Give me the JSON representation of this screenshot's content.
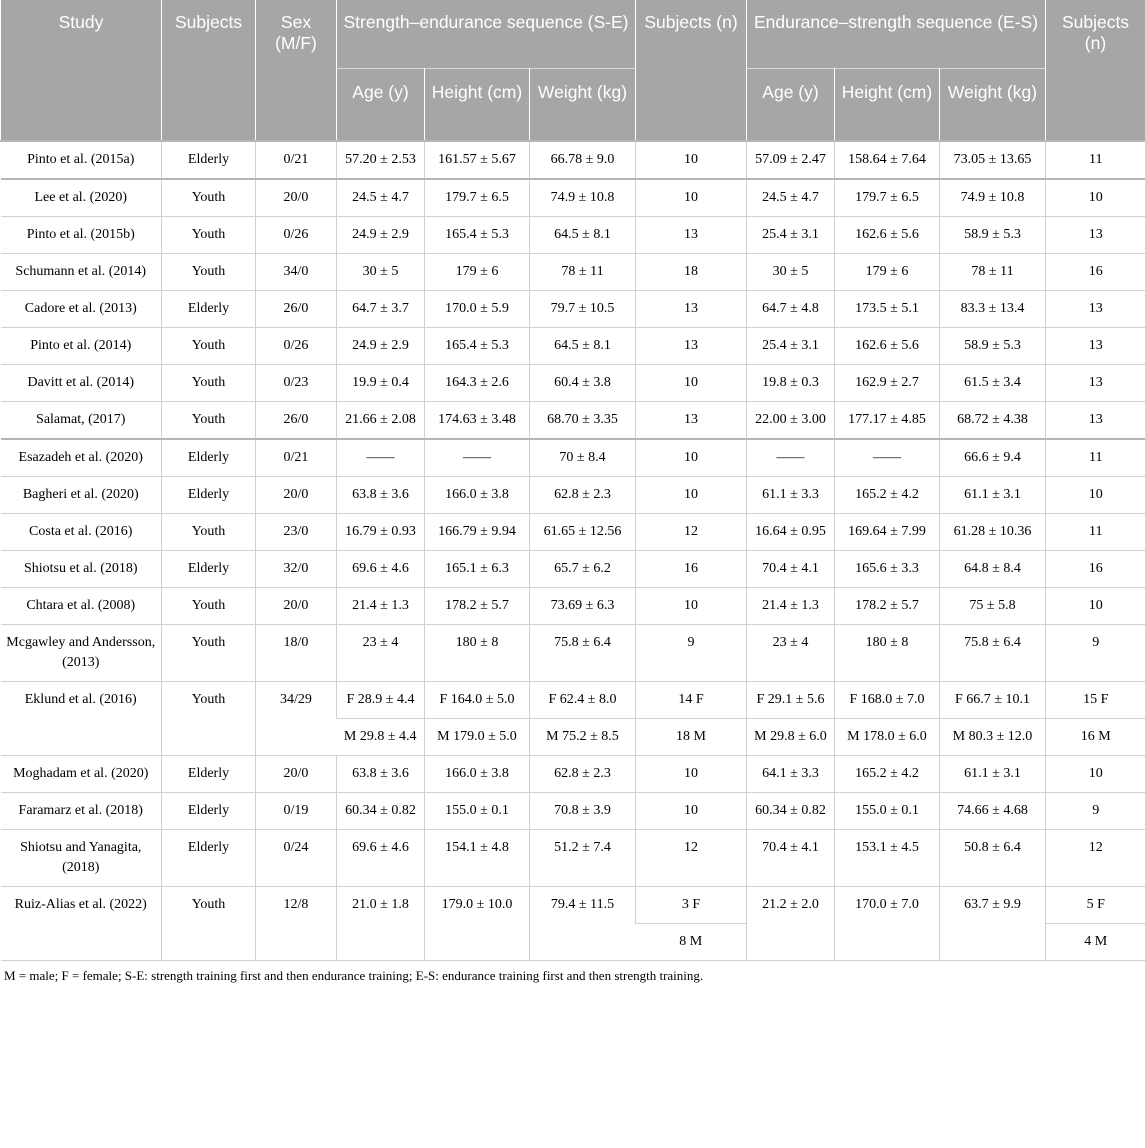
{
  "header": {
    "study": "Study",
    "subjects": "Subjects",
    "sex": "Sex (M/F)",
    "se_group": "Strength–endurance sequence (S-E)",
    "subjects_n1": "Subjects (n)",
    "es_group": "Endurance–strength sequence (E-S)",
    "subjects_n2": "Subjects (n)",
    "age": "Age (y)",
    "height": "Height (cm)",
    "weight": "Weight (kg)"
  },
  "rows": [
    [
      "Pinto et al. (2015a)",
      "Elderly",
      "0/21",
      "57.20 ± 2.53",
      "161.57 ± 5.67",
      "66.78 ± 9.0",
      "10",
      "57.09 ± 2.47",
      "158.64 ± 7.64",
      "73.05 ± 13.65",
      "11"
    ],
    [
      "Lee et al. (2020)",
      "Youth",
      "20/0",
      "24.5 ± 4.7",
      "179.7 ± 6.5",
      "74.9 ± 10.8",
      "10",
      "24.5 ± 4.7",
      "179.7 ± 6.5",
      "74.9 ± 10.8",
      "10"
    ],
    [
      "Pinto et al. (2015b)",
      "Youth",
      "0/26",
      "24.9 ± 2.9",
      "165.4 ± 5.3",
      "64.5 ± 8.1",
      "13",
      "25.4 ± 3.1",
      "162.6 ± 5.6",
      "58.9 ± 5.3",
      "13"
    ],
    [
      "Schumann et al. (2014)",
      "Youth",
      "34/0",
      "30 ± 5",
      "179 ± 6",
      "78 ± 11",
      "18",
      "30 ± 5",
      "179 ± 6",
      "78 ± 11",
      "16"
    ],
    [
      "Cadore et al. (2013)",
      "Elderly",
      "26/0",
      "64.7 ± 3.7",
      "170.0 ± 5.9",
      "79.7 ± 10.5",
      "13",
      "64.7 ± 4.8",
      "173.5 ± 5.1",
      "83.3 ± 13.4",
      "13"
    ],
    [
      "Pinto et al. (2014)",
      "Youth",
      "0/26",
      "24.9 ± 2.9",
      "165.4 ± 5.3",
      "64.5 ± 8.1",
      "13",
      "25.4 ± 3.1",
      "162.6 ± 5.6",
      "58.9 ± 5.3",
      "13"
    ],
    [
      "Davitt et al. (2014)",
      "Youth",
      "0/23",
      "19.9 ± 0.4",
      "164.3 ± 2.6",
      "60.4 ± 3.8",
      "10",
      "19.8 ± 0.3",
      "162.9 ± 2.7",
      "61.5 ± 3.4",
      "13"
    ],
    [
      "Salamat, (2017)",
      "Youth",
      "26/0",
      "21.66 ± 2.08",
      "174.63 ± 3.48",
      "68.70 ± 3.35",
      "13",
      "22.00 ± 3.00",
      "177.17 ± 4.85",
      "68.72 ± 4.38",
      "13"
    ],
    [
      "Esazadeh et al. (2020)",
      "Elderly",
      "0/21",
      "——",
      "——",
      "70 ± 8.4",
      "10",
      "——",
      "——",
      "66.6 ± 9.4",
      "11"
    ],
    [
      "Bagheri et al. (2020)",
      "Elderly",
      "20/0",
      "63.8 ± 3.6",
      "166.0 ± 3.8",
      "62.8 ± 2.3",
      "10",
      "61.1 ± 3.3",
      "165.2 ± 4.2",
      "61.1 ± 3.1",
      "10"
    ],
    [
      "Costa et al. (2016)",
      "Youth",
      "23/0",
      "16.79 ± 0.93",
      "166.79 ± 9.94",
      "61.65 ± 12.56",
      "12",
      "16.64 ± 0.95",
      "169.64 ± 7.99",
      "61.28 ± 10.36",
      "11"
    ],
    [
      "Shiotsu et al. (2018)",
      "Elderly",
      "32/0",
      "69.6 ± 4.6",
      "165.1 ± 6.3",
      "65.7 ± 6.2",
      "16",
      "70.4 ± 4.1",
      "165.6 ± 3.3",
      "64.8 ± 8.4",
      "16"
    ],
    [
      "Chtara et al. (2008)",
      "Youth",
      "20/0",
      "21.4 ± 1.3",
      "178.2 ± 5.7",
      "73.69 ± 6.3",
      "10",
      "21.4 ± 1.3",
      "178.2 ± 5.7",
      "75 ± 5.8",
      "10"
    ],
    [
      "Mcgawley and Andersson, (2013)",
      "Youth",
      "18/0",
      "23 ± 4",
      "180 ± 8",
      "75.8 ± 6.4",
      "9",
      "23 ± 4",
      "180 ± 8",
      "75.8 ± 6.4",
      "9"
    ]
  ],
  "eklund": {
    "study": "Eklund et al. (2016)",
    "subjects": "Youth",
    "sex": "34/29",
    "f": [
      "F 28.9 ± 4.4",
      "F 164.0 ± 5.0",
      "F 62.4 ± 8.0",
      "14 F",
      "F 29.1 ± 5.6",
      "F 168.0 ± 7.0",
      "F 66.7 ± 10.1",
      "15 F"
    ],
    "m": [
      "M 29.8 ± 4.4",
      "M 179.0 ± 5.0",
      "M 75.2 ± 8.5",
      "18 M",
      "M 29.8 ± 6.0",
      "M 178.0 ± 6.0",
      "M 80.3 ± 12.0",
      "16 M"
    ]
  },
  "rows2": [
    [
      "Moghadam et al. (2020)",
      "Elderly",
      "20/0",
      "63.8 ± 3.6",
      "166.0 ± 3.8",
      "62.8 ± 2.3",
      "10",
      "64.1 ± 3.3",
      "165.2 ± 4.2",
      "61.1 ± 3.1",
      "10"
    ],
    [
      "Faramarz et al. (2018)",
      "Elderly",
      "0/19",
      "60.34 ± 0.82",
      "155.0 ± 0.1",
      "70.8 ± 3.9",
      "10",
      "60.34 ± 0.82",
      "155.0 ± 0.1",
      "74.66 ± 4.68",
      "9"
    ],
    [
      "Shiotsu and Yanagita, (2018)",
      "Elderly",
      "0/24",
      "69.6 ± 4.6",
      "154.1 ± 4.8",
      "51.2 ± 7.4",
      "12",
      "70.4 ± 4.1",
      "153.1 ± 4.5",
      "50.8 ± 6.4",
      "12"
    ]
  ],
  "ruiz": {
    "study": "Ruiz-Alias et al. (2022)",
    "subjects": "Youth",
    "sex": "12/8",
    "se_age": "21.0 ± 1.8",
    "se_height": "179.0 ± 10.0",
    "se_weight": "79.4 ± 11.5",
    "n1_f": "3 F",
    "n1_m": "8 M",
    "es_age": "21.2 ± 2.0",
    "es_height": "170.0 ± 7.0",
    "es_weight": "63.7 ± 9.9",
    "n2_f": "5 F",
    "n2_m": "4 M"
  },
  "footnote": "M = male; F = female; S-E: strength training first and then endurance training; E-S: endurance training first and then strength training."
}
